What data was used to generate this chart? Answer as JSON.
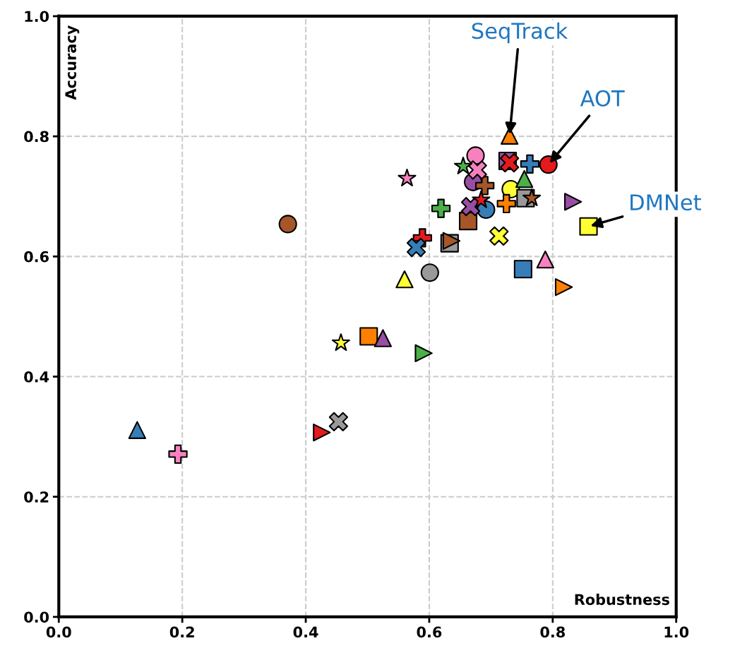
{
  "chart_data": {
    "type": "scatter",
    "xlabel": "Robustness",
    "ylabel": "Accuracy",
    "xlim": [
      0,
      1
    ],
    "ylim": [
      0,
      1
    ],
    "xticks": [
      {
        "value": 0,
        "label": "0.0"
      },
      {
        "value": 0.2,
        "label": "0.2"
      },
      {
        "value": 0.4,
        "label": "0.4"
      },
      {
        "value": 0.6,
        "label": "0.6"
      },
      {
        "value": 0.8,
        "label": "0.8"
      },
      {
        "value": 1,
        "label": "1.0"
      }
    ],
    "yticks": [
      {
        "value": 0,
        "label": "0.0"
      },
      {
        "value": 0.2,
        "label": "0.2"
      },
      {
        "value": 0.4,
        "label": "0.4"
      },
      {
        "value": 0.6,
        "label": "0.6"
      },
      {
        "value": 0.8,
        "label": "0.8"
      },
      {
        "value": 1,
        "label": "1.0"
      }
    ],
    "grid": true,
    "legend": false,
    "annotations": [
      {
        "text": "SeqTrack",
        "x": 0.73,
        "y": 0.8
      },
      {
        "text": "AOT",
        "x": 0.793,
        "y": 0.753
      },
      {
        "text": "DMNet",
        "x": 0.858,
        "y": 0.65
      }
    ],
    "series": [
      {
        "marker": "circle",
        "x": [
          0.371,
          0.601,
          0.692,
          0.675,
          0.671,
          0.793,
          0.732
        ],
        "values": [
          0.654,
          0.573,
          0.678,
          0.768,
          0.724,
          0.753,
          0.712
        ],
        "colors": [
          "#a65628",
          "#999999",
          "#377eb8",
          "#f781bf",
          "#984ea3",
          "#e41a1c",
          "#ffff33"
        ]
      },
      {
        "marker": "square",
        "x": [
          0.502,
          0.633,
          0.663,
          0.727,
          0.756,
          0.858,
          0.752
        ],
        "values": [
          0.467,
          0.622,
          0.659,
          0.759,
          0.697,
          0.65,
          0.579
        ],
        "colors": [
          "#ff7f00",
          "#999999",
          "#a65628",
          "#984ea3",
          "#999999",
          "#ffff33",
          "#377eb8"
        ]
      },
      {
        "marker": "triangle",
        "x": [
          0.127,
          0.525,
          0.56,
          0.73,
          0.754,
          0.788
        ],
        "values": [
          0.311,
          0.464,
          0.562,
          0.801,
          0.729,
          0.595
        ],
        "colors": [
          "#377eb8",
          "#984ea3",
          "#ffff33",
          "#ff7f00",
          "#4daf4a",
          "#f781bf"
        ]
      },
      {
        "marker": "triangle-right",
        "x": [
          0.426,
          0.591,
          0.636,
          0.833,
          0.818
        ],
        "values": [
          0.307,
          0.439,
          0.626,
          0.691,
          0.549
        ],
        "colors": [
          "#e41a1c",
          "#4daf4a",
          "#a65628",
          "#984ea3",
          "#ff7f00"
        ]
      },
      {
        "marker": "plus",
        "x": [
          0.193,
          0.589,
          0.619,
          0.69,
          0.763,
          0.725
        ],
        "values": [
          0.271,
          0.631,
          0.68,
          0.718,
          0.754,
          0.688
        ],
        "colors": [
          "#f781bf",
          "#e41a1c",
          "#4daf4a",
          "#a65628",
          "#377eb8",
          "#ff7f00"
        ]
      },
      {
        "marker": "cross",
        "x": [
          0.453,
          0.579,
          0.667,
          0.678,
          0.73,
          0.713
        ],
        "values": [
          0.325,
          0.615,
          0.683,
          0.744,
          0.756,
          0.634
        ],
        "colors": [
          "#999999",
          "#377eb8",
          "#984ea3",
          "#f781bf",
          "#e41a1c",
          "#ffff33"
        ]
      },
      {
        "marker": "star",
        "x": [
          0.457,
          0.564,
          0.684,
          0.655,
          0.766
        ],
        "values": [
          0.456,
          0.73,
          0.694,
          0.75,
          0.697
        ],
        "colors": [
          "#ffff33",
          "#f781bf",
          "#e41a1c",
          "#4daf4a",
          "#a65628"
        ]
      }
    ]
  }
}
